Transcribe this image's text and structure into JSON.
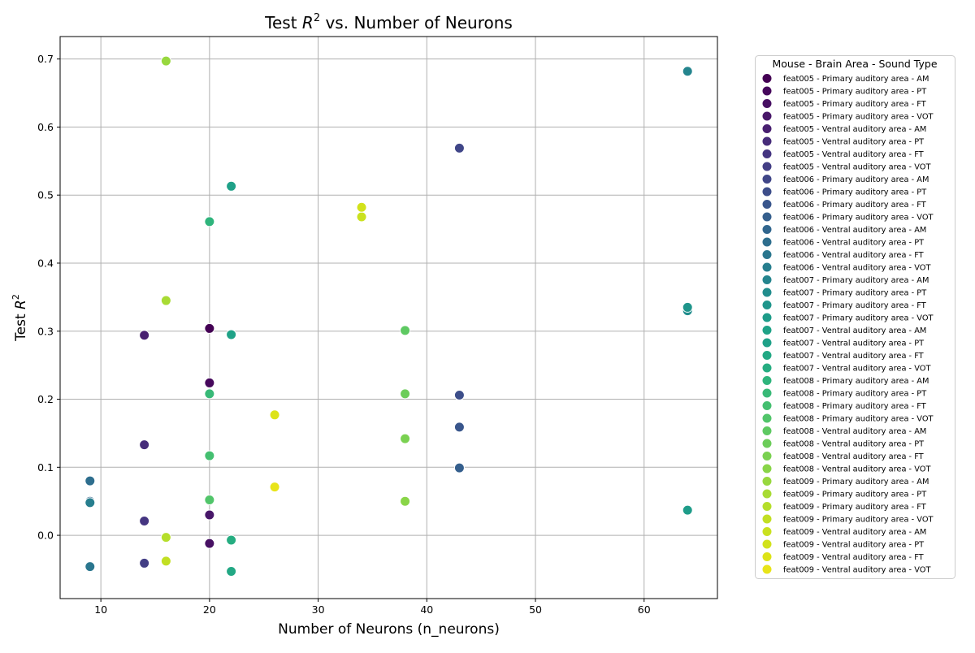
{
  "chart_data": {
    "type": "scatter",
    "title_prefix": "Test ",
    "title_math": "R",
    "title_sup": "2",
    "title_suffix": " vs. Number of Neurons",
    "xlabel": "Number of Neurons (n_neurons)",
    "ylabel_prefix": "Test ",
    "ylabel_math": "R",
    "ylabel_sup": "2",
    "xlim": [
      6.25,
      66.75
    ],
    "ylim": [
      -0.093,
      0.733
    ],
    "xticks": [
      10,
      20,
      30,
      40,
      50,
      60
    ],
    "yticks": [
      0.0,
      0.1,
      0.2,
      0.3,
      0.4,
      0.5,
      0.6,
      0.7
    ],
    "ytick_labels": [
      "0.0",
      "0.1",
      "0.2",
      "0.3",
      "0.4",
      "0.5",
      "0.6",
      "0.7"
    ],
    "grid": true,
    "legend_title": "Mouse - Brain Area - Sound Type",
    "legend_position": "right, outside plot",
    "series": [
      {
        "name": "feat005 - Primary auditory area - AM",
        "color": "#440154",
        "points": [
          [
            20,
            0.304
          ]
        ]
      },
      {
        "name": "feat005 - Primary auditory area - PT",
        "color": "#46085c",
        "points": [
          [
            20,
            0.224
          ]
        ]
      },
      {
        "name": "feat005 - Primary auditory area - FT",
        "color": "#471063",
        "points": [
          [
            20,
            -0.012
          ]
        ]
      },
      {
        "name": "feat005 - Primary auditory area - VOT",
        "color": "#481769",
        "points": [
          [
            20,
            0.03
          ]
        ]
      },
      {
        "name": "feat005 - Ventral auditory area - AM",
        "color": "#481f70",
        "points": [
          [
            14,
            0.294
          ]
        ]
      },
      {
        "name": "feat005 - Ventral auditory area - PT",
        "color": "#472c7a",
        "points": [
          [
            14,
            0.133
          ]
        ]
      },
      {
        "name": "feat005 - Ventral auditory area - FT",
        "color": "#453581",
        "points": [
          [
            14,
            0.021
          ]
        ]
      },
      {
        "name": "feat005 - Ventral auditory area - VOT",
        "color": "#433e85",
        "points": [
          [
            14,
            -0.041
          ]
        ]
      },
      {
        "name": "feat006 - Primary auditory area - AM",
        "color": "#404688",
        "points": [
          [
            43,
            0.569
          ]
        ]
      },
      {
        "name": "feat006 - Primary auditory area - PT",
        "color": "#3d4e8a",
        "points": [
          [
            43,
            0.206
          ]
        ]
      },
      {
        "name": "feat006 - Primary auditory area - FT",
        "color": "#39568c",
        "points": [
          [
            43,
            0.159
          ]
        ]
      },
      {
        "name": "feat006 - Primary auditory area - VOT",
        "color": "#355f8d",
        "points": [
          [
            43,
            0.099
          ]
        ]
      },
      {
        "name": "feat006 - Ventral auditory area - AM",
        "color": "#31668e",
        "points": [
          [
            9,
            0.05
          ]
        ]
      },
      {
        "name": "feat006 - Ventral auditory area - PT",
        "color": "#2e6e8e",
        "points": [
          [
            9,
            0.08
          ]
        ]
      },
      {
        "name": "feat006 - Ventral auditory area - FT",
        "color": "#2a768e",
        "points": [
          [
            9,
            -0.046
          ]
        ]
      },
      {
        "name": "feat006 - Ventral auditory area - VOT",
        "color": "#277e8e",
        "points": [
          [
            9,
            0.048
          ]
        ]
      },
      {
        "name": "feat007 - Primary auditory area - AM",
        "color": "#25858e",
        "points": [
          [
            64,
            0.682
          ]
        ]
      },
      {
        "name": "feat007 - Primary auditory area - PT",
        "color": "#228d8d",
        "points": [
          [
            64,
            0.33
          ]
        ]
      },
      {
        "name": "feat007 - Primary auditory area - FT",
        "color": "#1f958b",
        "points": [
          [
            64,
            0.335
          ]
        ]
      },
      {
        "name": "feat007 - Primary auditory area - VOT",
        "color": "#1e9c89",
        "points": [
          [
            64,
            0.037
          ]
        ]
      },
      {
        "name": "feat007 - Ventral auditory area - AM",
        "color": "#1fa287",
        "points": [
          [
            22,
            0.295
          ]
        ]
      },
      {
        "name": "feat007 - Ventral auditory area - PT",
        "color": "#1fa188",
        "points": [
          [
            22,
            0.513
          ]
        ]
      },
      {
        "name": "feat007 - Ventral auditory area - FT",
        "color": "#22a884",
        "points": [
          [
            22,
            -0.053
          ]
        ]
      },
      {
        "name": "feat007 - Ventral auditory area - VOT",
        "color": "#26ad81",
        "points": [
          [
            22,
            -0.007
          ]
        ]
      },
      {
        "name": "feat008 - Primary auditory area - AM",
        "color": "#2fb47c",
        "points": [
          [
            20,
            0.461
          ]
        ]
      },
      {
        "name": "feat008 - Primary auditory area - PT",
        "color": "#38b977",
        "points": [
          [
            20,
            0.208
          ]
        ]
      },
      {
        "name": "feat008 - Primary auditory area - FT",
        "color": "#44bf70",
        "points": [
          [
            20,
            0.117
          ]
        ]
      },
      {
        "name": "feat008 - Primary auditory area - VOT",
        "color": "#51c56a",
        "points": [
          [
            20,
            0.052
          ]
        ]
      },
      {
        "name": "feat008 - Ventral auditory area - AM",
        "color": "#5ec962",
        "points": [
          [
            38,
            0.301
          ]
        ]
      },
      {
        "name": "feat008 - Ventral auditory area - PT",
        "color": "#6ccd5a",
        "points": [
          [
            38,
            0.208
          ]
        ]
      },
      {
        "name": "feat008 - Ventral auditory area - FT",
        "color": "#7ad151",
        "points": [
          [
            38,
            0.142
          ]
        ]
      },
      {
        "name": "feat008 - Ventral auditory area - VOT",
        "color": "#89d548",
        "points": [
          [
            38,
            0.05
          ]
        ]
      },
      {
        "name": "feat009 - Primary auditory area - AM",
        "color": "#98d83e",
        "points": [
          [
            16,
            0.697
          ]
        ]
      },
      {
        "name": "feat009 - Primary auditory area - PT",
        "color": "#a8db34",
        "points": [
          [
            16,
            0.345
          ]
        ]
      },
      {
        "name": "feat009 - Primary auditory area - FT",
        "color": "#b5de2b",
        "points": [
          [
            16,
            -0.003
          ]
        ]
      },
      {
        "name": "feat009 - Primary auditory area - VOT",
        "color": "#c2df23",
        "points": [
          [
            16,
            -0.038
          ]
        ]
      },
      {
        "name": "feat009 - Ventral auditory area - AM",
        "color": "#cae11f",
        "points": [
          [
            34,
            0.468
          ]
        ]
      },
      {
        "name": "feat009 - Ventral auditory area - PT",
        "color": "#d2e21b",
        "points": [
          [
            34,
            0.482
          ]
        ]
      },
      {
        "name": "feat009 - Ventral auditory area - FT",
        "color": "#dde318",
        "points": [
          [
            26,
            0.177
          ]
        ]
      },
      {
        "name": "feat009 - Ventral auditory area - VOT",
        "color": "#e8e419",
        "points": [
          [
            26,
            0.071
          ]
        ]
      }
    ]
  }
}
